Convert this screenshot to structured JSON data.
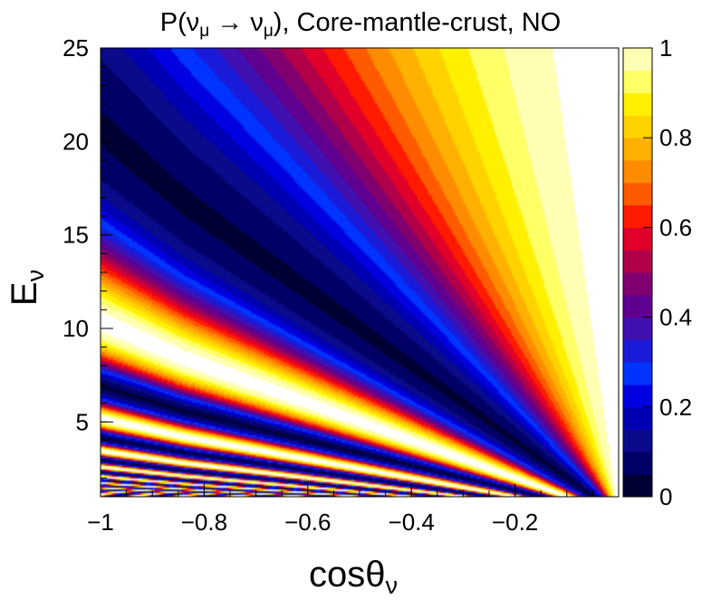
{
  "chart_data": {
    "type": "heatmap",
    "title": "P(ν_μ → ν_μ), Core-mantle-crust, NO",
    "title_parts": {
      "prefix": "P(ν",
      "sub1": "μ",
      "arrow": " → ν",
      "sub2": "μ",
      "suffix": "), Core-mantle-crust, NO"
    },
    "xlabel": "cosθ",
    "xlabel_sub": "ν",
    "ylabel": "E",
    "ylabel_sub": "ν",
    "xlim": [
      -1,
      0
    ],
    "ylim": [
      1,
      25
    ],
    "zlim": [
      0,
      1
    ],
    "xticks": [
      -1,
      -0.8,
      -0.6,
      -0.4,
      -0.2
    ],
    "xtick_labels": [
      "−1",
      "−0.8",
      "−0.6",
      "−0.4",
      "−0.2"
    ],
    "yticks": [
      5,
      10,
      15,
      20,
      25
    ],
    "ytick_labels": [
      "5",
      "10",
      "15",
      "20",
      "25"
    ],
    "zticks": [
      0,
      0.2,
      0.4,
      0.6,
      0.8,
      1
    ],
    "ztick_labels": [
      "0",
      "0.2",
      "0.4",
      "0.6",
      "0.8",
      "1"
    ],
    "contour_levels": 20,
    "palette": [
      "#000033",
      "#000066",
      "#0a0a8a",
      "#0000b3",
      "#0000e0",
      "#0033ff",
      "#1a1ad9",
      "#4010b0",
      "#600090",
      "#800070",
      "#b0004a",
      "#e0002a",
      "#ff1a00",
      "#ff5a00",
      "#ff8c00",
      "#ffb000",
      "#ffd200",
      "#fff000",
      "#ffff66",
      "#ffffb3",
      "#ffffff"
    ],
    "colorbar_bands": [
      "#000033",
      "#000066",
      "#0a0a8a",
      "#0000b3",
      "#0000e0",
      "#0033ff",
      "#1a1ad9",
      "#4010b0",
      "#600090",
      "#800070",
      "#b0004a",
      "#e0002a",
      "#ff1a00",
      "#ff5a00",
      "#ff8c00",
      "#ffb000",
      "#ffd200",
      "#fff000",
      "#ffff66",
      "#ffffb3"
    ]
  }
}
